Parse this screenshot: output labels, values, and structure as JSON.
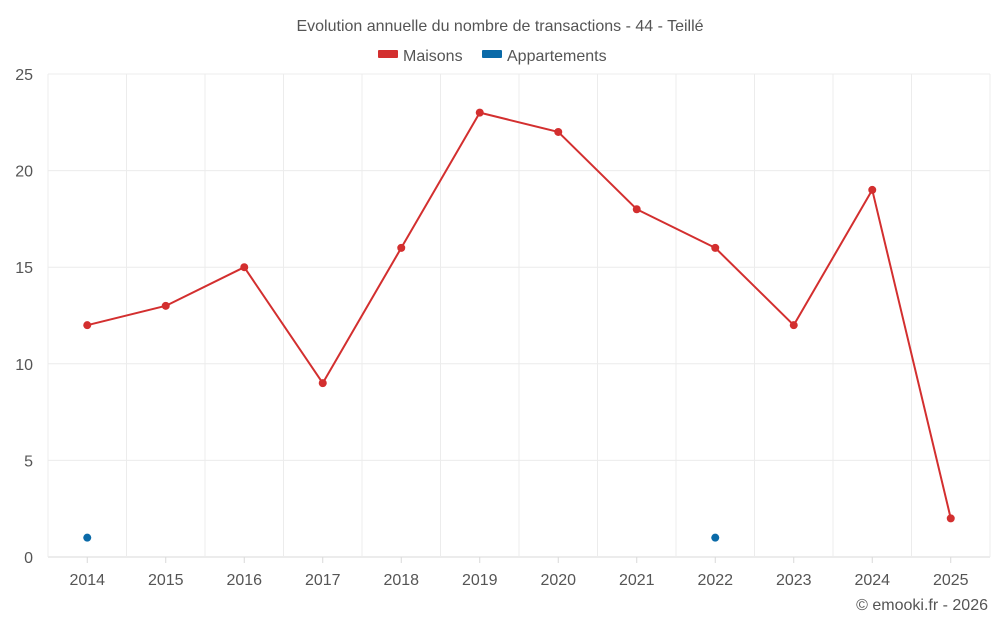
{
  "chart_data": {
    "type": "line",
    "title": "Evolution annuelle du nombre de transactions - 44 - Teillé",
    "categories": [
      "2014",
      "2015",
      "2016",
      "2017",
      "2018",
      "2019",
      "2020",
      "2021",
      "2022",
      "2023",
      "2024",
      "2025"
    ],
    "series": [
      {
        "name": "Maisons",
        "color": "#d32f2f",
        "values": [
          12,
          13,
          15,
          9,
          16,
          23,
          22,
          18,
          16,
          12,
          19,
          2
        ]
      },
      {
        "name": "Appartements",
        "color": "#0a6aa8",
        "values": [
          1,
          null,
          null,
          null,
          null,
          null,
          null,
          null,
          1,
          null,
          null,
          null
        ]
      }
    ],
    "xlabel": "",
    "ylabel": "",
    "ylim": [
      0,
      25
    ],
    "yticks": [
      0,
      5,
      10,
      15,
      20,
      25
    ],
    "grid": true,
    "legend_position": "top-center"
  },
  "credit": "© emooki.fr - 2026"
}
